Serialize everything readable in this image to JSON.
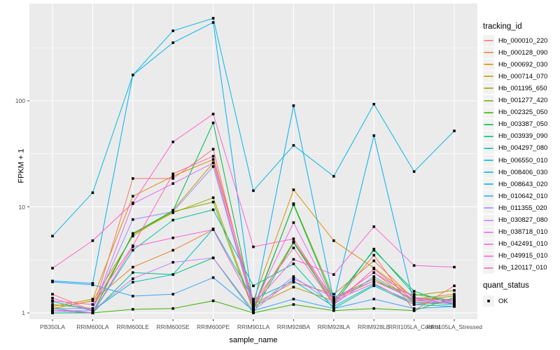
{
  "figure": {
    "x_axis": {
      "title": "sample_name",
      "tick_labels": [
        "PB350LA",
        "RRIM600LA",
        "RRIM600LE",
        "RRIM600SE",
        "RRIM600PE",
        "RRIM901LA",
        "RRIM928BA",
        "RRIM928LA",
        "RRIM928LE",
        "RRII105LA_Control",
        "RRII105LA_Stressed"
      ]
    },
    "y_axis": {
      "title": "FPKM + 1",
      "tick_labels": [
        "100",
        "10",
        "1"
      ],
      "tick_values": [
        100,
        10,
        1
      ],
      "scale": "log10"
    },
    "legend": {
      "tracking_title": "tracking_id",
      "quant_title": "quant_status",
      "quant_entries": [
        {
          "label": "OK",
          "marker": "black-square"
        }
      ]
    },
    "colors": {
      "panel_bg": "#EBEBEB",
      "grid_major": "#FFFFFF",
      "grid_minor": "#FFFFFF",
      "tick_label": "#4d4d4d",
      "axis_title": "#000000",
      "marker": "#000000",
      "legend_key_bg": "#F2F2F2",
      "tick_mark": "#333333"
    }
  },
  "chart_data": {
    "type": "line",
    "title": "",
    "xlabel": "sample_name",
    "ylabel": "FPKM + 1",
    "yscale": "log10",
    "ylim": [
      0.87,
      830
    ],
    "grid": true,
    "legend_position": "right",
    "marker": "black-square",
    "categories": [
      "PB350LA",
      "RRIM600LA",
      "RRIM600LE",
      "RRIM600SE",
      "RRIM600PE",
      "RRIM901LA",
      "RRIM928BA",
      "RRIM928LA",
      "RRIM928LE",
      "RRII105LA_Control",
      "RRII105LA_Stressed"
    ],
    "series": [
      {
        "name": "Hb_000010_220",
        "color": "#F8766D",
        "values": [
          1.5,
          1.05,
          18.5,
          18.5,
          35,
          1.1,
          4.7,
          1.25,
          3.5,
          1.05,
          1.8
        ]
      },
      {
        "name": "Hb_000128_090",
        "color": "#EA8331",
        "values": [
          1.1,
          1.3,
          2.7,
          3.9,
          6.1,
          1.2,
          1.95,
          1.5,
          3.1,
          1.35,
          1.5
        ]
      },
      {
        "name": "Hb_000692_030",
        "color": "#D89000",
        "values": [
          1.15,
          1.35,
          12.6,
          19.5,
          28,
          1.3,
          14.5,
          4.8,
          2.65,
          1.4,
          1.3
        ]
      },
      {
        "name": "Hb_000714_070",
        "color": "#C09B00",
        "values": [
          1.1,
          1.3,
          5.3,
          9.3,
          26,
          1.15,
          1.75,
          1.3,
          2.4,
          1.25,
          1.25
        ]
      },
      {
        "name": "Hb_001195_650",
        "color": "#A3A500",
        "values": [
          1.2,
          1.1,
          5.5,
          8.8,
          12.2,
          1.1,
          4.7,
          1.35,
          2.0,
          1.46,
          1.63
        ]
      },
      {
        "name": "Hb_001277_420",
        "color": "#7CAE00",
        "values": [
          1.05,
          1.0,
          5.6,
          9.0,
          11.1,
          1.05,
          10.7,
          1.4,
          2.1,
          1.3,
          1.45
        ]
      },
      {
        "name": "Hb_002325_050",
        "color": "#39B600",
        "values": [
          1.0,
          1.0,
          1.08,
          1.1,
          1.3,
          1.0,
          1.2,
          1.05,
          1.1,
          1.05,
          1.4
        ]
      },
      {
        "name": "Hb_003387_050",
        "color": "#00BB4E",
        "values": [
          1.05,
          1.0,
          5.6,
          9.2,
          62,
          1.1,
          10.5,
          1.3,
          3.9,
          1.6,
          1.2
        ]
      },
      {
        "name": "Hb_003939_090",
        "color": "#00BF7D",
        "values": [
          1.0,
          1.0,
          2.4,
          2.3,
          3.3,
          1.0,
          4.6,
          1.2,
          4.0,
          1.5,
          1.3
        ]
      },
      {
        "name": "Hb_004297_080",
        "color": "#00C1A3",
        "values": [
          1.1,
          1.0,
          3.9,
          7.5,
          9.4,
          1.8,
          2.9,
          1.1,
          1.8,
          1.2,
          1.15
        ]
      },
      {
        "name": "Hb_006550_010",
        "color": "#00BFC4",
        "values": [
          1.28,
          1.05,
          1.95,
          2.3,
          6.2,
          1.35,
          2.0,
          1.15,
          1.85,
          1.25,
          1.2
        ]
      },
      {
        "name": "Hb_008406_030",
        "color": "#00BAE0",
        "values": [
          5.3,
          13.6,
          175,
          457,
          600,
          14.2,
          38,
          19.4,
          93,
          21.5,
          52
        ]
      },
      {
        "name": "Hb_008643_020",
        "color": "#00B0F6",
        "values": [
          2.0,
          1.9,
          175,
          353,
          548,
          1.1,
          90,
          1.3,
          47,
          1.2,
          1.3
        ]
      },
      {
        "name": "Hb_010642_010",
        "color": "#35A2FF",
        "values": [
          1.96,
          1.84,
          1.44,
          1.5,
          2.15,
          1.05,
          1.35,
          1.1,
          1.35,
          1.1,
          1.15
        ]
      },
      {
        "name": "Hb_011355_020",
        "color": "#9590FF",
        "values": [
          1.1,
          1.1,
          7.6,
          9.0,
          24,
          1.1,
          2.2,
          1.2,
          2.2,
          1.3,
          1.25
        ]
      },
      {
        "name": "Hb_030827_080",
        "color": "#C77CFF",
        "values": [
          1.05,
          1.05,
          2.1,
          3.0,
          3.3,
          1.05,
          2.1,
          1.4,
          2.0,
          1.35,
          1.3
        ]
      },
      {
        "name": "Hb_038718_010",
        "color": "#E76BF3",
        "values": [
          1.38,
          1.05,
          10.7,
          16.6,
          26,
          1.15,
          7.1,
          1.3,
          2.4,
          1.4,
          1.2
        ]
      },
      {
        "name": "Hb_042491_010",
        "color": "#FA62DB",
        "values": [
          1.05,
          1.0,
          4.2,
          5.1,
          6.1,
          1.2,
          3.2,
          2.3,
          6.5,
          2.8,
          2.7
        ]
      },
      {
        "name": "Hb_049915_010",
        "color": "#FF61CC",
        "values": [
          2.64,
          4.8,
          10.9,
          41,
          75,
          4.2,
          5.0,
          1.3,
          1.9,
          1.2,
          1.3
        ]
      },
      {
        "name": "Hb_120117_010",
        "color": "#FF65AE",
        "values": [
          1.3,
          1.2,
          4.3,
          20.5,
          30,
          1.25,
          4.1,
          1.2,
          2.6,
          1.3,
          1.35
        ]
      }
    ]
  }
}
